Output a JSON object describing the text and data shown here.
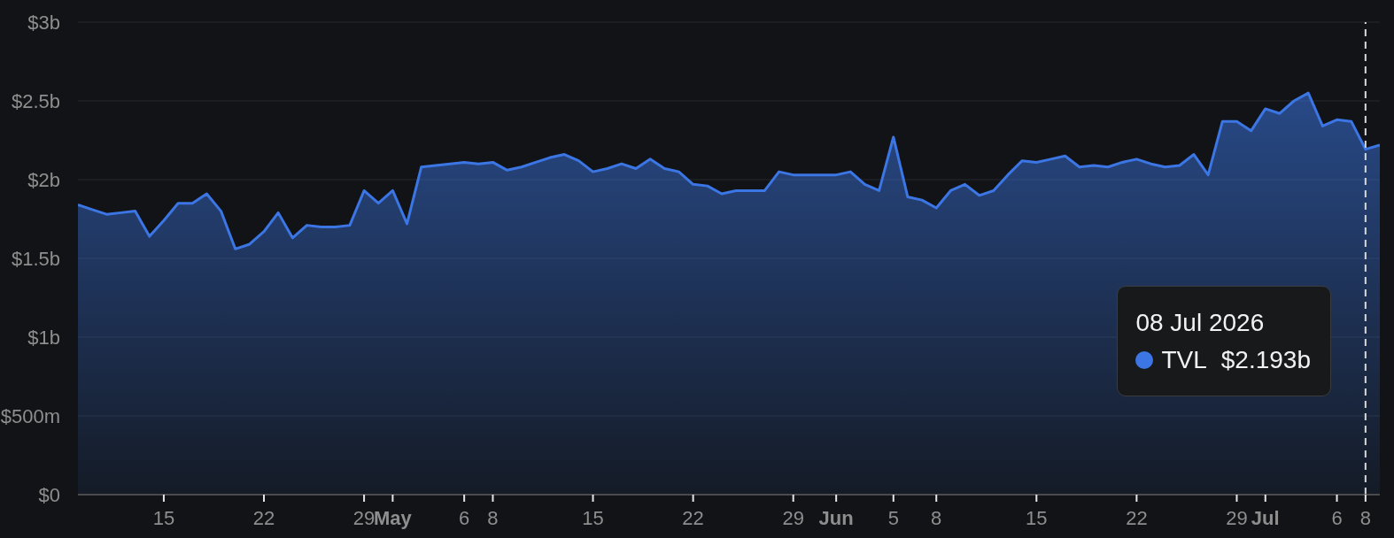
{
  "chart_data": {
    "type": "area",
    "x": [
      "2026-04-09",
      "2026-04-10",
      "2026-04-11",
      "2026-04-12",
      "2026-04-13",
      "2026-04-14",
      "2026-04-15",
      "2026-04-16",
      "2026-04-17",
      "2026-04-18",
      "2026-04-19",
      "2026-04-20",
      "2026-04-21",
      "2026-04-22",
      "2026-04-23",
      "2026-04-24",
      "2026-04-25",
      "2026-04-26",
      "2026-04-27",
      "2026-04-28",
      "2026-04-29",
      "2026-04-30",
      "2026-05-01",
      "2026-05-02",
      "2026-05-03",
      "2026-05-04",
      "2026-05-05",
      "2026-05-06",
      "2026-05-07",
      "2026-05-08",
      "2026-05-09",
      "2026-05-10",
      "2026-05-11",
      "2026-05-12",
      "2026-05-13",
      "2026-05-14",
      "2026-05-15",
      "2026-05-16",
      "2026-05-17",
      "2026-05-18",
      "2026-05-19",
      "2026-05-20",
      "2026-05-21",
      "2026-05-22",
      "2026-05-23",
      "2026-05-24",
      "2026-05-25",
      "2026-05-26",
      "2026-05-27",
      "2026-05-28",
      "2026-05-29",
      "2026-05-30",
      "2026-05-31",
      "2026-06-01",
      "2026-06-02",
      "2026-06-03",
      "2026-06-04",
      "2026-06-05",
      "2026-06-06",
      "2026-06-07",
      "2026-06-08",
      "2026-06-09",
      "2026-06-10",
      "2026-06-11",
      "2026-06-12",
      "2026-06-13",
      "2026-06-14",
      "2026-06-15",
      "2026-06-16",
      "2026-06-17",
      "2026-06-18",
      "2026-06-19",
      "2026-06-20",
      "2026-06-21",
      "2026-06-22",
      "2026-06-23",
      "2026-06-24",
      "2026-06-25",
      "2026-06-26",
      "2026-06-27",
      "2026-06-28",
      "2026-06-29",
      "2026-06-30",
      "2026-07-01",
      "2026-07-02",
      "2026-07-03",
      "2026-07-04",
      "2026-07-05",
      "2026-07-06",
      "2026-07-07",
      "2026-07-08",
      "2026-07-09"
    ],
    "series": [
      {
        "name": "TVL",
        "color": "#3b76e4",
        "values": [
          1840000000.0,
          1810000000.0,
          1780000000.0,
          1790000000.0,
          1800000000.0,
          1640000000.0,
          1740000000.0,
          1850000000.0,
          1850000000.0,
          1910000000.0,
          1800000000.0,
          1560000000.0,
          1590000000.0,
          1670000000.0,
          1790000000.0,
          1630000000.0,
          1710000000.0,
          1700000000.0,
          1700000000.0,
          1710000000.0,
          1930000000.0,
          1850000000.0,
          1930000000.0,
          1720000000.0,
          2080000000.0,
          2090000000.0,
          2100000000.0,
          2110000000.0,
          2100000000.0,
          2110000000.0,
          2060000000.0,
          2080000000.0,
          2110000000.0,
          2140000000.0,
          2160000000.0,
          2120000000.0,
          2050000000.0,
          2070000000.0,
          2100000000.0,
          2070000000.0,
          2130000000.0,
          2070000000.0,
          2050000000.0,
          1970000000.0,
          1960000000.0,
          1910000000.0,
          1930000000.0,
          1930000000.0,
          1930000000.0,
          2050000000.0,
          2030000000.0,
          2030000000.0,
          2030000000.0,
          2030000000.0,
          2050000000.0,
          1970000000.0,
          1930000000.0,
          2270000000.0,
          1890000000.0,
          1870000000.0,
          1820000000.0,
          1930000000.0,
          1970000000.0,
          1900000000.0,
          1930000000.0,
          2030000000.0,
          2120000000.0,
          2110000000.0,
          2130000000.0,
          2150000000.0,
          2080000000.0,
          2090000000.0,
          2080000000.0,
          2110000000.0,
          2130000000.0,
          2100000000.0,
          2080000000.0,
          2090000000.0,
          2160000000.0,
          2030000000.0,
          2370000000.0,
          2370000000.0,
          2310000000.0,
          2450000000.0,
          2420000000.0,
          2500000000.0,
          2550000000.0,
          2340000000.0,
          2380000000.0,
          2370000000.0,
          2193000000.0,
          2220000000.0
        ]
      }
    ],
    "xlim": [
      "2026-04-09",
      "2026-07-09"
    ],
    "xticks": [
      {
        "value": "2026-04-15",
        "label": "15"
      },
      {
        "value": "2026-04-22",
        "label": "22"
      },
      {
        "value": "2026-04-29",
        "label": "29"
      },
      {
        "value": "2026-05-01",
        "label": "May"
      },
      {
        "value": "2026-05-06",
        "label": "6"
      },
      {
        "value": "2026-05-08",
        "label": "8"
      },
      {
        "value": "2026-05-15",
        "label": "15"
      },
      {
        "value": "2026-05-22",
        "label": "22"
      },
      {
        "value": "2026-05-29",
        "label": "29"
      },
      {
        "value": "2026-06-01",
        "label": "Jun"
      },
      {
        "value": "2026-06-05",
        "label": "5"
      },
      {
        "value": "2026-06-08",
        "label": "8"
      },
      {
        "value": "2026-06-15",
        "label": "15"
      },
      {
        "value": "2026-06-22",
        "label": "22"
      },
      {
        "value": "2026-06-29",
        "label": "29"
      },
      {
        "value": "2026-07-01",
        "label": "Jul"
      },
      {
        "value": "2026-07-06",
        "label": "6"
      },
      {
        "value": "2026-07-08",
        "label": "8"
      }
    ],
    "ylim": [
      0,
      3000000000.0
    ],
    "yticks": [
      {
        "value": 0,
        "label": "$0"
      },
      {
        "value": 500000000.0,
        "label": "$500m"
      },
      {
        "value": 1000000000.0,
        "label": "$1b"
      },
      {
        "value": 1500000000.0,
        "label": "$1.5b"
      },
      {
        "value": 2000000000.0,
        "label": "$2b"
      },
      {
        "value": 2500000000.0,
        "label": "$2.5b"
      },
      {
        "value": 3000000000.0,
        "label": "$3b"
      }
    ],
    "grid": "y",
    "legend": "bottom right",
    "ref_lines": [
      {
        "axis": "x",
        "value": "2026-07-08",
        "color": "#d8d8d8",
        "line_style": "dashed"
      }
    ],
    "annotations": [
      "08 Jul 2026",
      "$2.193b"
    ]
  }
}
